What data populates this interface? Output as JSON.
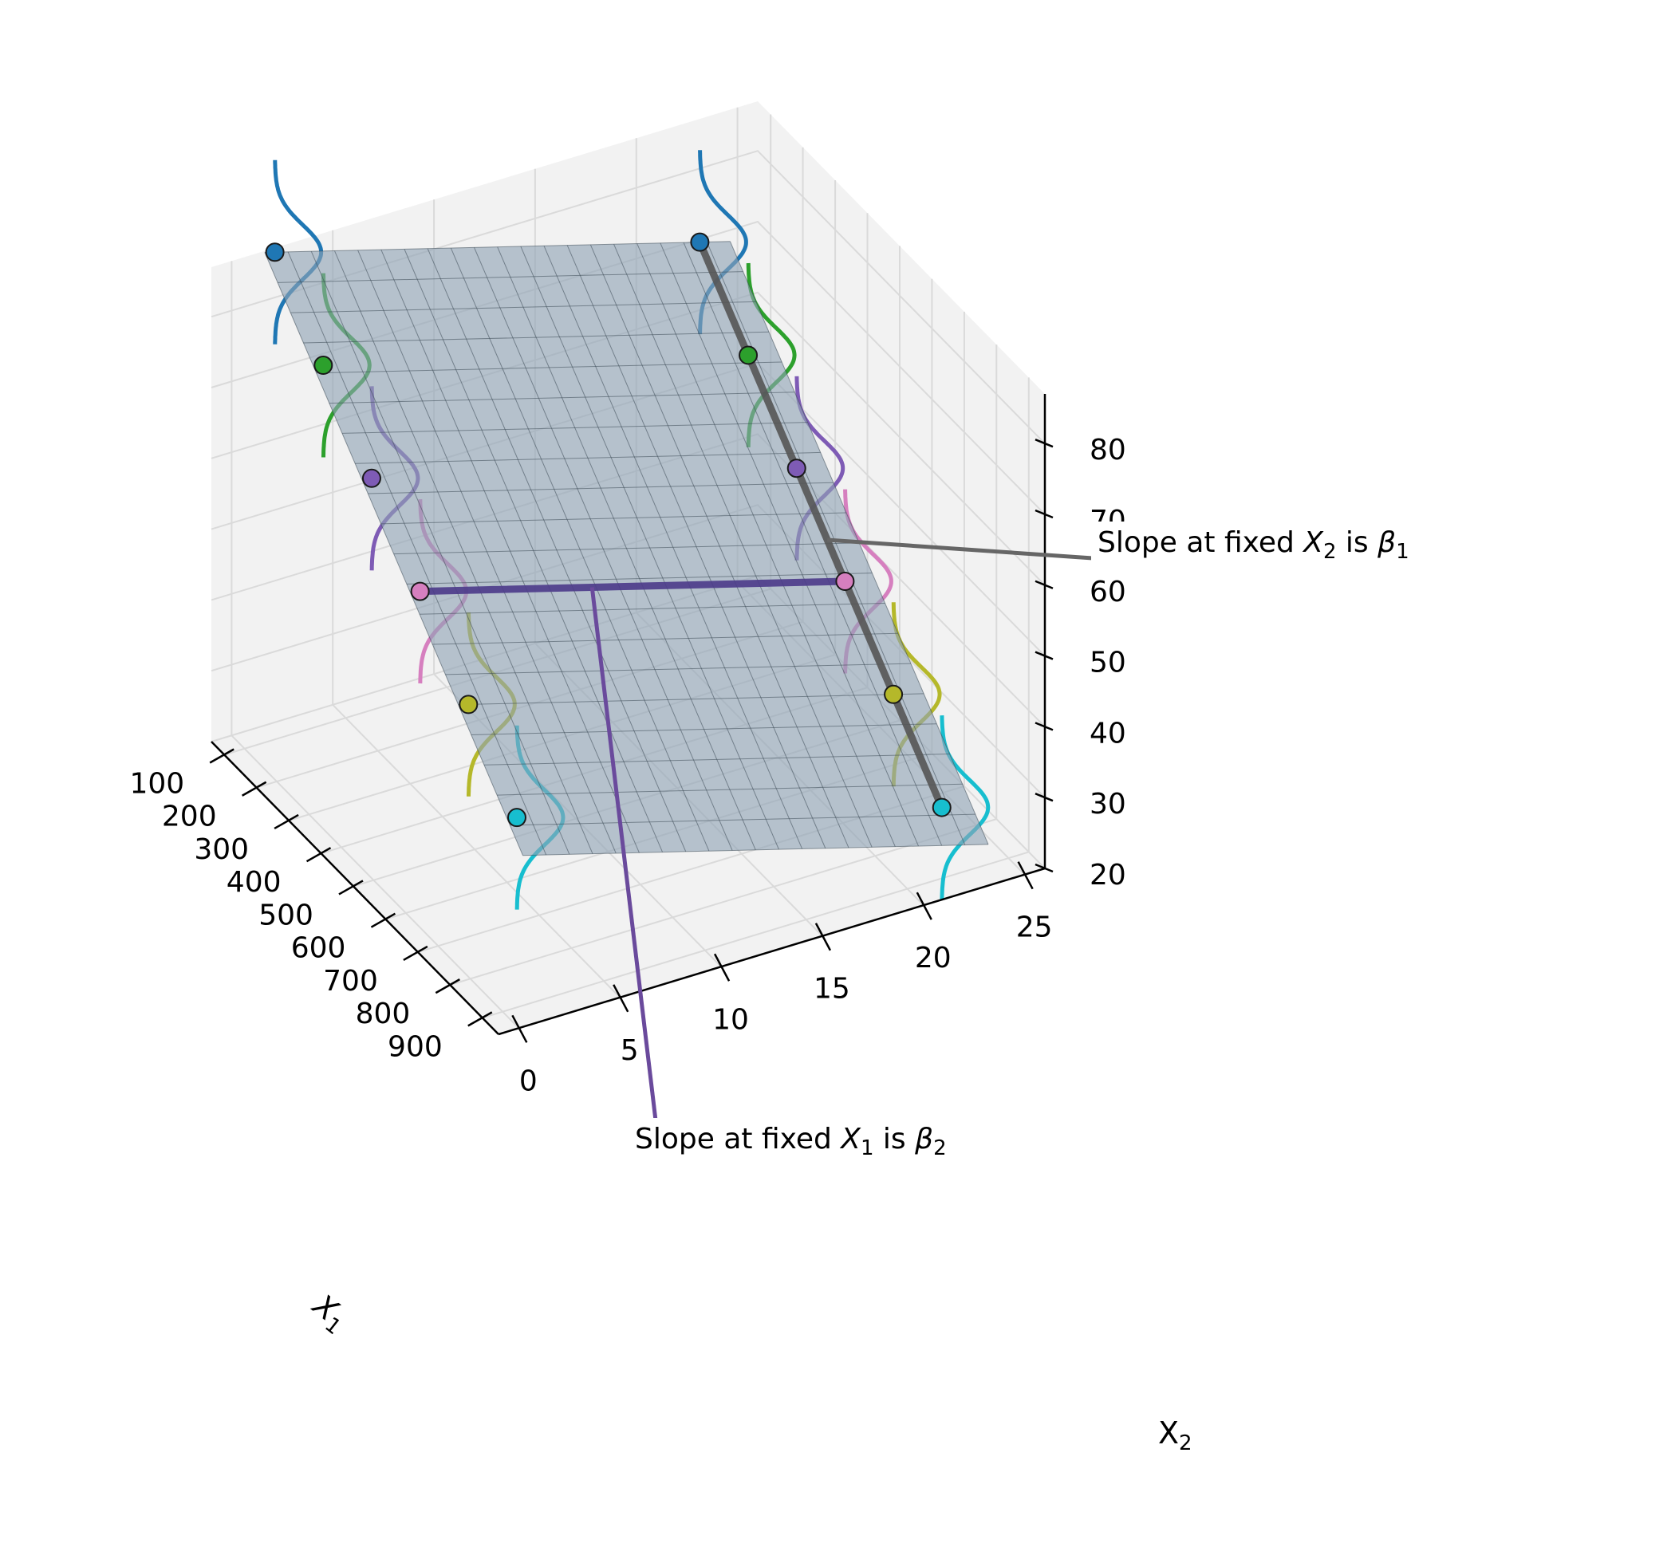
{
  "chart_data": {
    "type": "surface3d",
    "title": "",
    "xlabel": "X",
    "xlabel_sub": "1",
    "ylabel": "X",
    "ylabel_sub": "2",
    "zlabel": "",
    "xlim": [
      60,
      950
    ],
    "ylim": [
      -1,
      26
    ],
    "zlim": [
      20,
      87
    ],
    "x_ticks": [
      100,
      200,
      300,
      400,
      500,
      600,
      700,
      800,
      900
    ],
    "y_ticks": [
      0,
      5,
      10,
      15,
      20,
      25
    ],
    "z_ticks": [
      20,
      30,
      40,
      50,
      60,
      70,
      80
    ],
    "grid": true,
    "plane": {
      "intercept": 96.0,
      "beta1": -0.06,
      "beta2": -0.8,
      "x_range": [
        100,
        900
      ],
      "y_range": [
        1,
        24
      ],
      "color": "#8fa3b5"
    },
    "series": [
      {
        "color": "#1f77b4",
        "points": [
          {
            "x": 100,
            "y": 1.5,
            "z": 88.8
          },
          {
            "x": 100,
            "y": 22.5,
            "z": 72.0
          }
        ]
      },
      {
        "color": "#2ca02c",
        "points": [
          {
            "x": 250,
            "y": 1.5,
            "z": 79.8
          },
          {
            "x": 250,
            "y": 22.5,
            "z": 63.0
          }
        ]
      },
      {
        "color": "#7e5bb5",
        "points": [
          {
            "x": 400,
            "y": 1.5,
            "z": 70.8
          },
          {
            "x": 400,
            "y": 22.5,
            "z": 54.0
          }
        ]
      },
      {
        "color": "#d67fbf",
        "points": [
          {
            "x": 550,
            "y": 1.5,
            "z": 61.8
          },
          {
            "x": 550,
            "y": 22.5,
            "z": 45.0
          }
        ]
      },
      {
        "color": "#b5b82a",
        "points": [
          {
            "x": 700,
            "y": 1.5,
            "z": 52.8
          },
          {
            "x": 700,
            "y": 22.5,
            "z": 36.0
          }
        ]
      },
      {
        "color": "#17becf",
        "points": [
          {
            "x": 850,
            "y": 1.5,
            "z": 43.8
          },
          {
            "x": 850,
            "y": 22.5,
            "z": 27.0
          }
        ]
      }
    ],
    "slope_lines": [
      {
        "name": "slope-x2",
        "color": "#4b3a8a",
        "x": 550,
        "y_from": 1.5,
        "y_to": 22.5
      },
      {
        "name": "slope-x1",
        "color": "#555555",
        "y": 22.5,
        "x_from": 100,
        "x_to": 850
      }
    ],
    "annotations": [
      {
        "text_before": "Slope at fixed ",
        "sym": "X",
        "sub": "2",
        "text_mid": " is ",
        "sym2": "β",
        "sub2": "1",
        "position": "upper-right"
      },
      {
        "text_before": "Slope at fixed ",
        "sym": "X",
        "sub": "1",
        "text_mid": " is ",
        "sym2": "β",
        "sub2": "2",
        "position": "lower-center"
      }
    ]
  }
}
